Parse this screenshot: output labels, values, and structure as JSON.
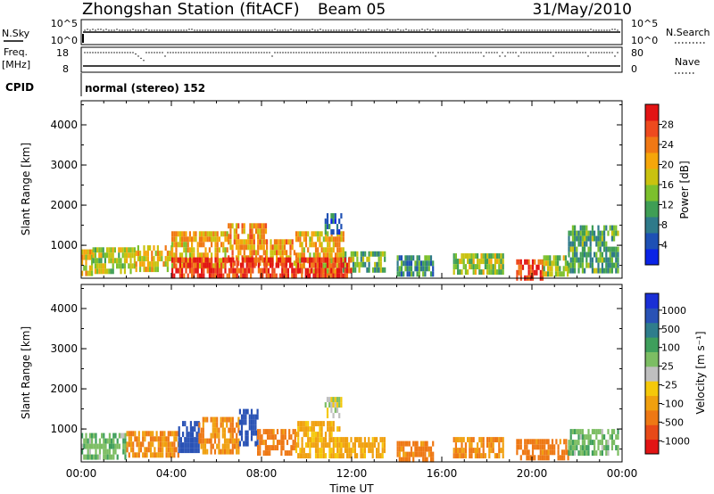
{
  "header": {
    "station": "Zhongshan Station (fitACF)",
    "beam": "Beam 05",
    "date": "31/May/2010"
  },
  "status_panels": {
    "nsky_label": "N.Sky",
    "nsearch_label": "N.Search",
    "freq_label_line1": "Freq.",
    "freq_label_line2": "[MHz]",
    "nave_label": "Nave",
    "cpid_label": "CPID",
    "cpid_text": "normal (stereo) 152",
    "left_ticks_top": [
      "10^5",
      "10^0"
    ],
    "right_ticks_top": [
      "10^5",
      "10^0"
    ],
    "left_ticks_freq": [
      "18",
      "8"
    ],
    "right_ticks_nave": [
      "80",
      "0"
    ]
  },
  "chart_data": [
    {
      "type": "heatmap",
      "title": "",
      "xlabel": "",
      "ylabel": "Slant Range [km]",
      "xlim": [
        0,
        24
      ],
      "ylim": [
        180,
        4600
      ],
      "yticks": [
        "1000",
        "2000",
        "3000",
        "4000"
      ],
      "colorbar": {
        "label": "Power [dB]",
        "ticks": [
          "4",
          "8",
          "12",
          "16",
          "20",
          "24",
          "28"
        ],
        "colors": [
          "#0a23e6",
          "#1e50b4",
          "#2f7a8a",
          "#3f9e55",
          "#7cc02d",
          "#c9c20f",
          "#f5a60a",
          "#f07814",
          "#ee4a1e",
          "#e21414"
        ]
      },
      "cells": [
        {
          "t": [
            0.0,
            0.5
          ],
          "r": [
            300,
            900
          ],
          "v": 17
        },
        {
          "t": [
            0.5,
            2.4
          ],
          "r": [
            300,
            950
          ],
          "v": 15
        },
        {
          "t": [
            2.4,
            4.0
          ],
          "r": [
            350,
            1000
          ],
          "v": 18
        },
        {
          "t": [
            4.0,
            6.5
          ],
          "r": [
            550,
            1350
          ],
          "v": 19
        },
        {
          "t": [
            6.5,
            8.2
          ],
          "r": [
            500,
            1550
          ],
          "v": 21
        },
        {
          "t": [
            8.2,
            9.5
          ],
          "r": [
            500,
            1150
          ],
          "v": 20
        },
        {
          "t": [
            9.5,
            11.6
          ],
          "r": [
            350,
            1350
          ],
          "v": 19
        },
        {
          "t": [
            10.8,
            11.5
          ],
          "r": [
            1400,
            1800
          ],
          "v": 6
        },
        {
          "t": [
            11.6,
            13.5
          ],
          "r": [
            350,
            850
          ],
          "v": 12
        },
        {
          "t": [
            4.0,
            12.0
          ],
          "r": [
            300,
            700
          ],
          "v": 27
        },
        {
          "t": [
            14.0,
            15.6
          ],
          "r": [
            300,
            750
          ],
          "v": 9
        },
        {
          "t": [
            16.5,
            18.7
          ],
          "r": [
            300,
            800
          ],
          "v": 14
        },
        {
          "t": [
            19.3,
            20.5
          ],
          "r": [
            250,
            650
          ],
          "v": 26
        },
        {
          "t": [
            20.5,
            21.6
          ],
          "r": [
            300,
            750
          ],
          "v": 15
        },
        {
          "t": [
            21.6,
            23.8
          ],
          "r": [
            350,
            1500
          ],
          "v": 11
        }
      ]
    },
    {
      "type": "heatmap",
      "title": "",
      "xlabel": "Time UT",
      "ylabel": "Slant Range [km]",
      "xlim": [
        0,
        24
      ],
      "ylim": [
        180,
        4600
      ],
      "xticks": [
        "00:00",
        "04:00",
        "08:00",
        "12:00",
        "16:00",
        "20:00",
        "00:00"
      ],
      "yticks": [
        "1000",
        "2000",
        "3000",
        "4000"
      ],
      "colorbar": {
        "label": "Velocity [m s⁻¹]",
        "ticks": [
          "1000",
          "500",
          "100",
          "25",
          "-25",
          "-100",
          "-500",
          "-1000"
        ],
        "colors": [
          "#1a2fd6",
          "#2952b5",
          "#2f7d8c",
          "#3f9f5c",
          "#7cbd63",
          "#bfbfbf",
          "#f5c80a",
          "#f0a00f",
          "#ee7814",
          "#e84a17",
          "#e21414"
        ]
      },
      "cells": [
        {
          "t": [
            0.0,
            2.0
          ],
          "r": [
            300,
            900
          ],
          "v": 75
        },
        {
          "t": [
            2.0,
            4.3
          ],
          "r": [
            300,
            950
          ],
          "v": -250
        },
        {
          "t": [
            4.3,
            5.2
          ],
          "r": [
            500,
            1200
          ],
          "v": 700
        },
        {
          "t": [
            5.2,
            7.0
          ],
          "r": [
            500,
            1300
          ],
          "v": -250
        },
        {
          "t": [
            7.0,
            7.8
          ],
          "r": [
            700,
            1500
          ],
          "v": 700
        },
        {
          "t": [
            7.8,
            9.5
          ],
          "r": [
            400,
            1000
          ],
          "v": -300
        },
        {
          "t": [
            9.5,
            11.5
          ],
          "r": [
            350,
            1200
          ],
          "v": -120
        },
        {
          "t": [
            10.8,
            11.5
          ],
          "r": [
            1400,
            1800
          ],
          "v": 5
        },
        {
          "t": [
            11.5,
            13.5
          ],
          "r": [
            350,
            800
          ],
          "v": -150
        },
        {
          "t": [
            14.0,
            15.6
          ],
          "r": [
            300,
            700
          ],
          "v": -300
        },
        {
          "t": [
            16.5,
            18.7
          ],
          "r": [
            300,
            800
          ],
          "v": -250
        },
        {
          "t": [
            19.3,
            21.6
          ],
          "r": [
            300,
            750
          ],
          "v": -300
        },
        {
          "t": [
            21.6,
            23.8
          ],
          "r": [
            350,
            1000
          ],
          "v": 75
        }
      ]
    }
  ]
}
